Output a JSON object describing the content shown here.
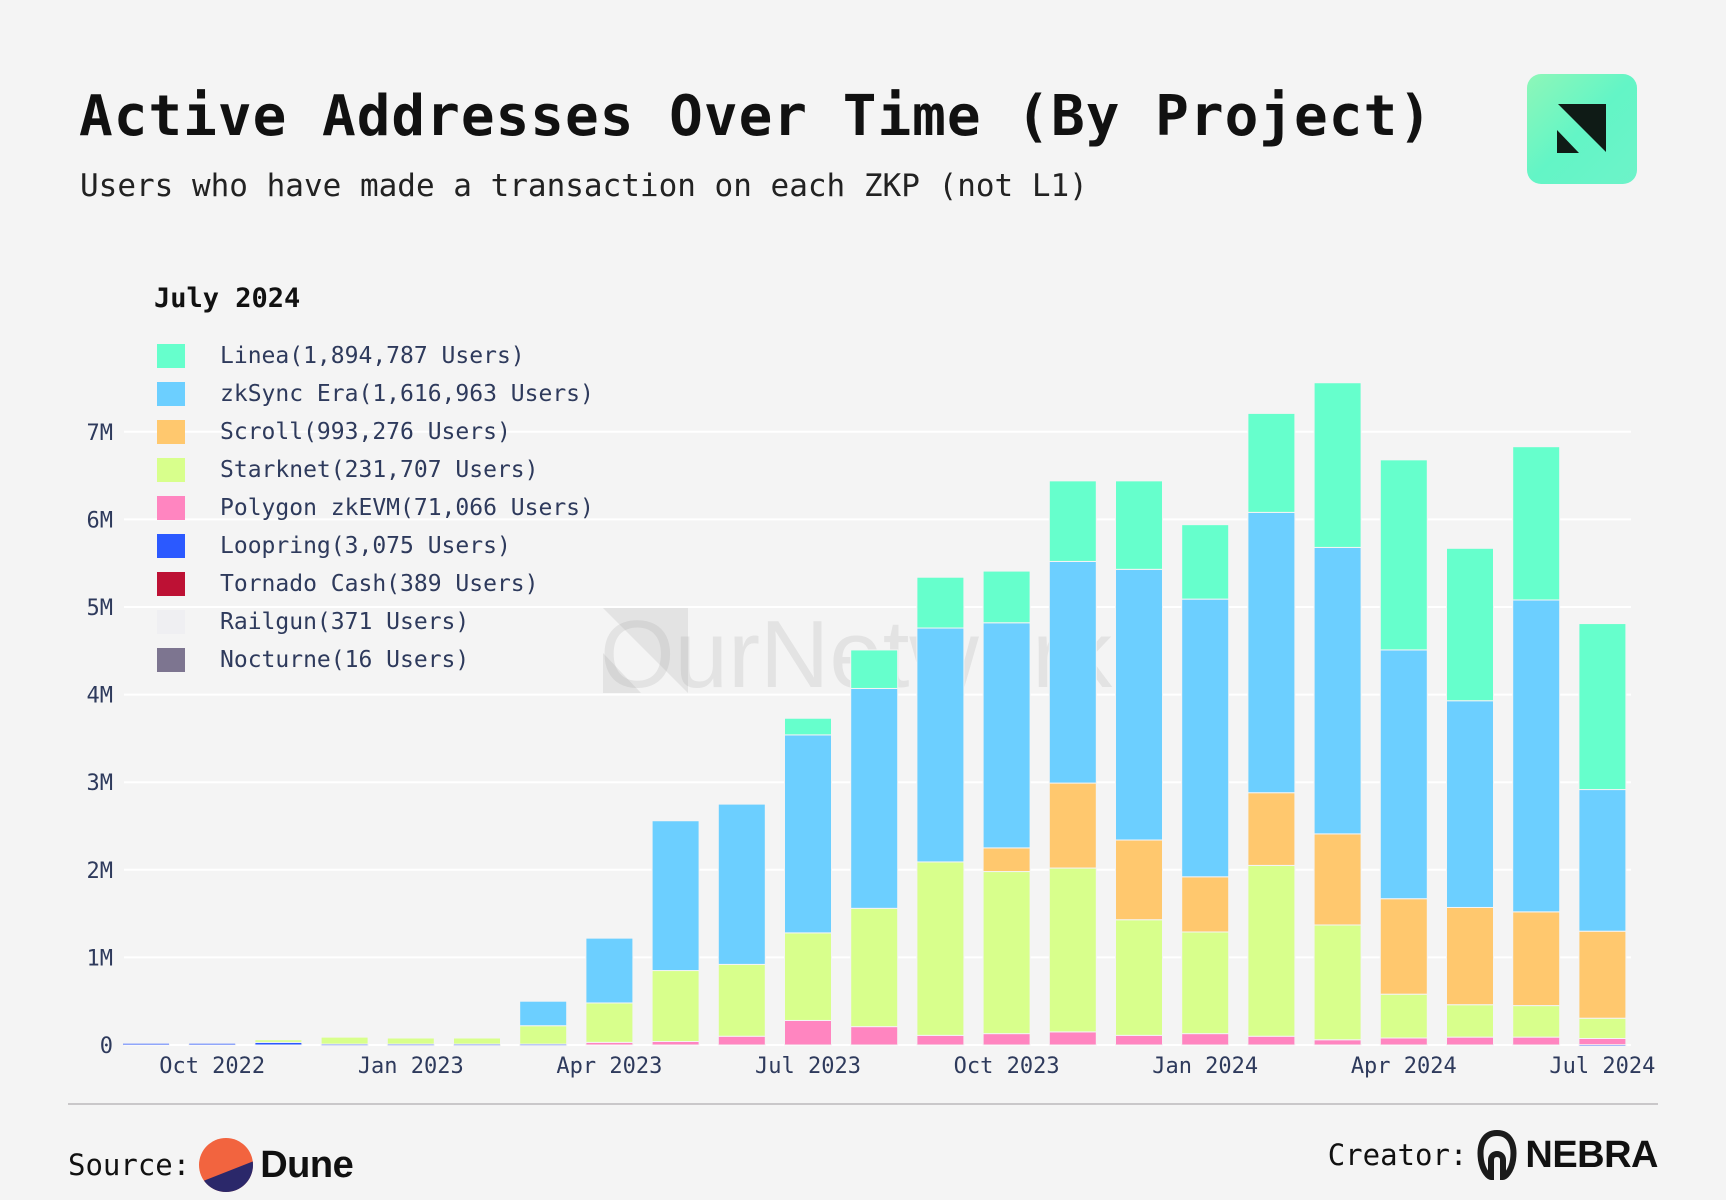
{
  "header": {
    "title": "Active Addresses Over Time (By Project)",
    "subtitle": "Users who have made a transaction on each ZKP (not L1)",
    "logo_icon": "ournetwork-logo-icon"
  },
  "watermark": "OurNetwork",
  "legend": {
    "title": "July 2024",
    "items": [
      {
        "label": "Linea(1,894,787 Users)",
        "color": "#66ffcc"
      },
      {
        "label": "zkSync Era(1,616,963 Users)",
        "color": "#6ccfff"
      },
      {
        "label": "Scroll(993,276 Users)",
        "color": "#ffc86e"
      },
      {
        "label": "Starknet(231,707 Users)",
        "color": "#d8ff8c"
      },
      {
        "label": "Polygon zkEVM(71,066 Users)",
        "color": "#ff85c0"
      },
      {
        "label": "Loopring(3,075 Users)",
        "color": "#2b59ff"
      },
      {
        "label": "Tornado Cash(389 Users)",
        "color": "#bd1134"
      },
      {
        "label": "Railgun(371 Users)",
        "color": "#efeff2"
      },
      {
        "label": "Nocturne(16 Users)",
        "color": "#7d7590"
      }
    ]
  },
  "chart_data": {
    "type": "bar",
    "stacked": true,
    "title": "Active Addresses Over Time (By Project)",
    "subtitle": "Users who have made a transaction on each ZKP (not L1)",
    "xlabel": "",
    "ylabel": "",
    "ylim": [
      0,
      7700000
    ],
    "grid": true,
    "legend_position": "top-left",
    "categories": [
      "Sep 2022",
      "Oct 2022",
      "Nov 2022",
      "Dec 2022",
      "Jan 2023",
      "Feb 2023",
      "Mar 2023",
      "Apr 2023",
      "May 2023",
      "Jun 2023",
      "Jul 2023",
      "Aug 2023",
      "Sep 2023",
      "Oct 2023",
      "Nov 2023",
      "Dec 2023",
      "Jan 2024",
      "Feb 2024",
      "Mar 2024",
      "Apr 2024",
      "May 2024",
      "Jun 2024",
      "Jul 2024"
    ],
    "x_ticks": [
      "Oct 2022",
      "Jan 2023",
      "Apr 2023",
      "Jul 2023",
      "Oct 2023",
      "Jan 2024",
      "Apr 2024",
      "Jul 2024"
    ],
    "y_ticks": [
      {
        "value": 0,
        "label": "0"
      },
      {
        "value": 1000000,
        "label": "1M"
      },
      {
        "value": 2000000,
        "label": "2M"
      },
      {
        "value": 3000000,
        "label": "3M"
      },
      {
        "value": 4000000,
        "label": "4M"
      },
      {
        "value": 5000000,
        "label": "5M"
      },
      {
        "value": 6000000,
        "label": "6M"
      },
      {
        "value": 7000000,
        "label": "7M"
      }
    ],
    "series": [
      {
        "name": "Loopring",
        "color": "#2b59ff",
        "values": [
          20000,
          20000,
          30000,
          10000,
          10000,
          10000,
          10000,
          0,
          0,
          0,
          0,
          0,
          0,
          0,
          0,
          0,
          0,
          0,
          0,
          0,
          0,
          0,
          3075
        ]
      },
      {
        "name": "Polygon zkEVM",
        "color": "#ff85c0",
        "values": [
          0,
          0,
          0,
          0,
          0,
          0,
          0,
          30000,
          40000,
          100000,
          280000,
          210000,
          110000,
          130000,
          150000,
          110000,
          130000,
          100000,
          60000,
          80000,
          90000,
          90000,
          71066
        ]
      },
      {
        "name": "Starknet",
        "color": "#d8ff8c",
        "values": [
          0,
          0,
          30000,
          80000,
          70000,
          70000,
          210000,
          450000,
          810000,
          820000,
          1000000,
          1350000,
          1980000,
          1850000,
          1870000,
          1320000,
          1160000,
          1950000,
          1310000,
          500000,
          370000,
          360000,
          231707
        ]
      },
      {
        "name": "Scroll",
        "color": "#ffc86e",
        "values": [
          0,
          0,
          0,
          0,
          0,
          0,
          0,
          0,
          0,
          0,
          0,
          0,
          0,
          270000,
          970000,
          910000,
          630000,
          830000,
          1040000,
          1090000,
          1110000,
          1070000,
          993276
        ]
      },
      {
        "name": "zkSync Era",
        "color": "#6ccfff",
        "values": [
          0,
          0,
          0,
          0,
          0,
          0,
          280000,
          740000,
          1710000,
          1830000,
          2260000,
          2510000,
          2670000,
          2570000,
          2530000,
          3090000,
          3170000,
          3200000,
          3270000,
          2840000,
          2360000,
          3560000,
          1616963
        ]
      },
      {
        "name": "Linea",
        "color": "#66ffcc",
        "values": [
          0,
          0,
          0,
          0,
          0,
          0,
          0,
          0,
          0,
          0,
          190000,
          440000,
          580000,
          590000,
          920000,
          1010000,
          850000,
          1130000,
          1880000,
          2170000,
          1740000,
          1750000,
          1894787
        ]
      }
    ]
  },
  "footer": {
    "source_label": "Source:",
    "source_brand": "Dune",
    "creator_label": "Creator:",
    "creator_brand": "NEBRA"
  }
}
